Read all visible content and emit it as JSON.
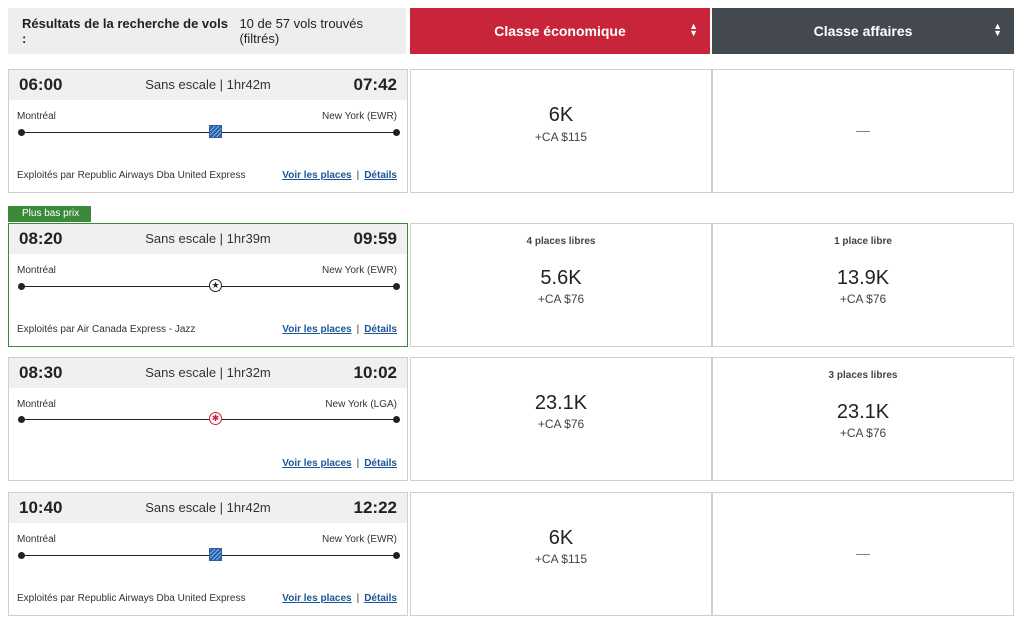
{
  "results": {
    "label": "Résultats de la recherche de vols :",
    "summary": "10 de 57 vols trouvés (filtrés)"
  },
  "tabs": {
    "economy": "Classe économique",
    "business": "Classe affaires"
  },
  "best_price_label": "Plus bas prix",
  "links": {
    "seats": "Voir les places",
    "details": "Détails"
  },
  "flights": [
    {
      "depart": "06:00",
      "arrive": "07:42",
      "stops": "Sans escale | 1hr42m",
      "origin": "Montréal",
      "destination": "New York (EWR)",
      "airline_icon": "united-express-icon",
      "operator": "Exploités par Republic Airways Dba United Express",
      "economy": {
        "seats": "",
        "points": "6K",
        "cash": "+CA $115"
      },
      "business": {
        "seats": "",
        "points": "",
        "cash": "",
        "empty": "—"
      }
    },
    {
      "depart": "08:20",
      "arrive": "09:59",
      "stops": "Sans escale | 1hr39m",
      "origin": "Montréal",
      "destination": "New York (EWR)",
      "airline_icon": "air-canada-express-jazz-icon",
      "operator": "Exploités par Air Canada Express - Jazz",
      "economy": {
        "seats": "4 places libres",
        "points": "5.6K",
        "cash": "+CA $76"
      },
      "business": {
        "seats": "1 place libre",
        "points": "13.9K",
        "cash": "+CA $76"
      }
    },
    {
      "depart": "08:30",
      "arrive": "10:02",
      "stops": "Sans escale | 1hr32m",
      "origin": "Montréal",
      "destination": "New York (LGA)",
      "airline_icon": "air-canada-maple-leaf-icon",
      "operator": "",
      "economy": {
        "seats": "",
        "points": "23.1K",
        "cash": "+CA $76"
      },
      "business": {
        "seats": "3 places libres",
        "points": "23.1K",
        "cash": "+CA $76"
      }
    },
    {
      "depart": "10:40",
      "arrive": "12:22",
      "stops": "Sans escale | 1hr42m",
      "origin": "Montréal",
      "destination": "New York (EWR)",
      "airline_icon": "united-express-icon",
      "operator": "Exploités par Republic Airways Dba United Express",
      "economy": {
        "seats": "",
        "points": "6K",
        "cash": "+CA $115"
      },
      "business": {
        "seats": "",
        "points": "",
        "cash": "",
        "empty": "—"
      }
    }
  ],
  "colors": {
    "economy_tab": "#c8243a",
    "business_tab": "#444851",
    "best_price": "#3a8a3a",
    "link": "#1b5597"
  }
}
